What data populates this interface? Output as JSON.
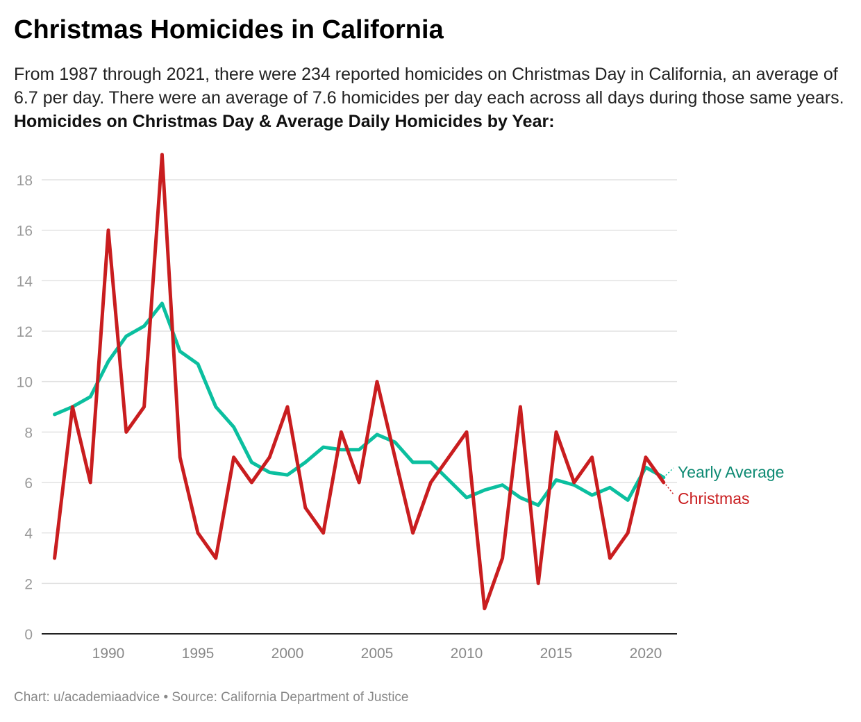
{
  "title": "Christmas Homicides in California",
  "subtitle_text": "From 1987 through 2021, there were 234 reported homicides on Christmas Day in California, an average of 6.7 per day. There were an average of 7.6 homicides per day each across all days during those same years.",
  "subtitle_bold": "Homicides on Christmas Day & Average Daily Homicides by Year:",
  "footer": "Chart: u/academiaadvice • Source: California Department of Justice",
  "chart_data": {
    "type": "line",
    "x": [
      1987,
      1988,
      1989,
      1990,
      1991,
      1992,
      1993,
      1994,
      1995,
      1996,
      1997,
      1998,
      1999,
      2000,
      2001,
      2002,
      2003,
      2004,
      2005,
      2006,
      2007,
      2008,
      2009,
      2010,
      2011,
      2012,
      2013,
      2014,
      2015,
      2016,
      2017,
      2018,
      2019,
      2020,
      2021
    ],
    "series": [
      {
        "name": "Yearly Average",
        "color": "#0bbf9f",
        "label_color": "#0e8a73",
        "values": [
          8.7,
          9.0,
          9.4,
          10.8,
          11.8,
          12.2,
          13.1,
          11.2,
          10.7,
          9.0,
          8.2,
          6.8,
          6.4,
          6.3,
          6.8,
          7.4,
          7.3,
          7.3,
          7.9,
          7.6,
          6.8,
          6.8,
          6.1,
          5.4,
          5.7,
          5.9,
          5.4,
          5.1,
          6.1,
          5.9,
          5.5,
          5.8,
          5.3,
          6.6,
          6.2
        ]
      },
      {
        "name": "Christmas",
        "color": "#c91d1f",
        "label_color": "#c91d1f",
        "values": [
          3,
          9,
          6,
          16,
          8,
          9,
          19,
          7,
          4,
          3,
          7,
          6,
          7,
          9,
          5,
          4,
          8,
          6,
          10,
          7,
          4,
          6,
          7,
          8,
          1,
          3,
          9,
          2,
          8,
          6,
          7,
          3,
          4,
          7,
          6
        ]
      }
    ],
    "xticks": [
      1990,
      1995,
      2000,
      2005,
      2010,
      2015,
      2020
    ],
    "yticks": [
      0,
      2,
      4,
      6,
      8,
      10,
      12,
      14,
      16,
      18
    ],
    "xlim": [
      1987,
      2021
    ],
    "ylim": [
      0,
      19
    ],
    "grid": true,
    "legend": "right-end-labels"
  }
}
